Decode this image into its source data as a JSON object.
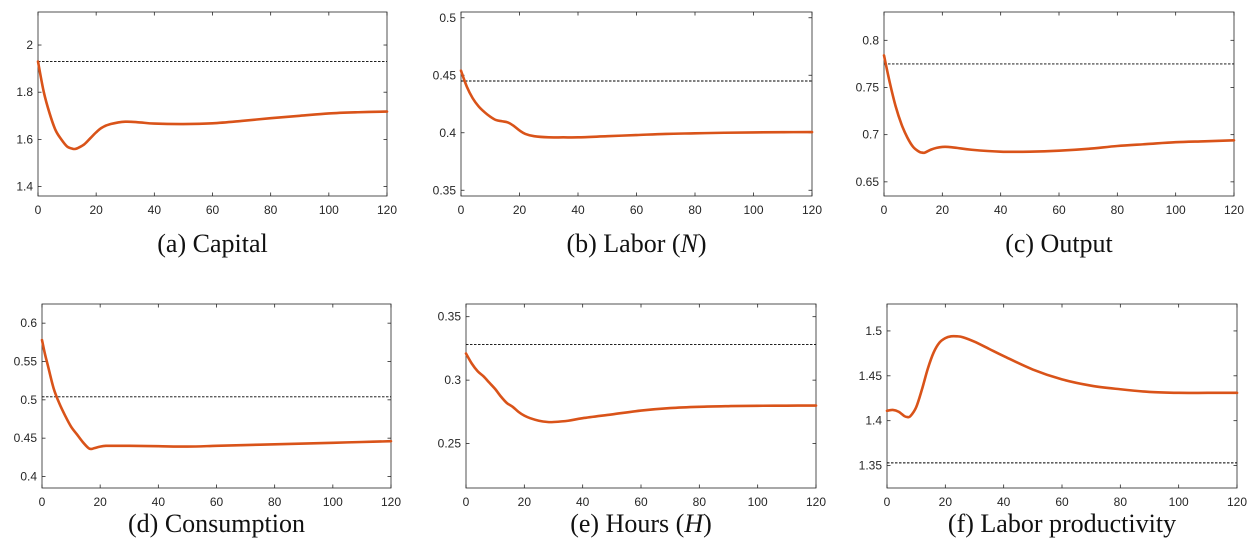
{
  "colors": {
    "series": "#d95319",
    "reference": "#000000",
    "axis": "#262626"
  },
  "chart_data": [
    {
      "type": "line",
      "caption": "(a) Capital",
      "xlim": [
        0,
        120
      ],
      "ylim": [
        1.36,
        2.14
      ],
      "xticks": [
        0,
        20,
        40,
        60,
        80,
        100,
        120
      ],
      "yticks": [
        1.4,
        1.6,
        1.8,
        2.0
      ],
      "ytick_labels": [
        "1.4",
        "1.6",
        "1.8",
        "2"
      ],
      "reference": 1.93,
      "x": [
        0,
        2,
        4,
        6,
        8,
        10,
        12,
        13,
        14,
        16,
        18,
        20,
        22,
        25,
        30,
        35,
        40,
        50,
        60,
        70,
        80,
        90,
        100,
        110,
        120
      ],
      "y": [
        1.93,
        1.8,
        1.71,
        1.64,
        1.6,
        1.57,
        1.56,
        1.56,
        1.565,
        1.58,
        1.605,
        1.63,
        1.65,
        1.665,
        1.675,
        1.672,
        1.667,
        1.665,
        1.668,
        1.678,
        1.69,
        1.7,
        1.71,
        1.715,
        1.718
      ]
    },
    {
      "type": "line",
      "caption": "(b) Labor (N)",
      "xlim": [
        0,
        120
      ],
      "ylim": [
        0.345,
        0.505
      ],
      "xticks": [
        0,
        20,
        40,
        60,
        80,
        100,
        120
      ],
      "yticks": [
        0.35,
        0.4,
        0.45,
        0.5
      ],
      "ytick_labels": [
        "0.35",
        "0.4",
        "0.45",
        "0.5"
      ],
      "reference": 0.445,
      "x": [
        0,
        2,
        4,
        6,
        8,
        10,
        12,
        14,
        16,
        18,
        20,
        22,
        25,
        30,
        35,
        40,
        50,
        60,
        70,
        80,
        90,
        100,
        110,
        120
      ],
      "y": [
        0.454,
        0.44,
        0.43,
        0.423,
        0.418,
        0.414,
        0.411,
        0.41,
        0.409,
        0.406,
        0.402,
        0.399,
        0.397,
        0.396,
        0.396,
        0.396,
        0.397,
        0.398,
        0.399,
        0.3995,
        0.4,
        0.4003,
        0.4005,
        0.4006
      ]
    },
    {
      "type": "line",
      "caption": "(c) Output",
      "xlim": [
        0,
        120
      ],
      "ylim": [
        0.635,
        0.83
      ],
      "xticks": [
        0,
        20,
        40,
        60,
        80,
        100,
        120
      ],
      "yticks": [
        0.65,
        0.7,
        0.75,
        0.8
      ],
      "ytick_labels": [
        "0.65",
        "0.7",
        "0.75",
        "0.8"
      ],
      "reference": 0.775,
      "x": [
        0,
        2,
        4,
        6,
        8,
        10,
        12,
        13,
        14,
        16,
        18,
        20,
        22,
        25,
        30,
        40,
        50,
        60,
        70,
        80,
        90,
        100,
        110,
        120
      ],
      "y": [
        0.784,
        0.755,
        0.73,
        0.711,
        0.697,
        0.687,
        0.682,
        0.681,
        0.681,
        0.684,
        0.686,
        0.687,
        0.687,
        0.686,
        0.684,
        0.682,
        0.682,
        0.683,
        0.685,
        0.688,
        0.69,
        0.692,
        0.693,
        0.694
      ]
    },
    {
      "type": "line",
      "caption": "(d) Consumption",
      "xlim": [
        0,
        120
      ],
      "ylim": [
        0.385,
        0.625
      ],
      "xticks": [
        0,
        20,
        40,
        60,
        80,
        100,
        120
      ],
      "yticks": [
        0.4,
        0.45,
        0.5,
        0.55,
        0.6
      ],
      "ytick_labels": [
        "0.4",
        "0.45",
        "0.5",
        "0.55",
        "0.6"
      ],
      "reference": 0.504,
      "x": [
        0,
        1,
        2,
        4,
        6,
        8,
        10,
        12,
        14,
        16,
        17,
        18,
        20,
        22,
        25,
        30,
        40,
        50,
        60,
        70,
        80,
        90,
        100,
        110,
        120
      ],
      "y": [
        0.578,
        0.56,
        0.545,
        0.515,
        0.495,
        0.479,
        0.465,
        0.455,
        0.445,
        0.437,
        0.436,
        0.437,
        0.439,
        0.44,
        0.44,
        0.44,
        0.4395,
        0.439,
        0.44,
        0.441,
        0.442,
        0.443,
        0.444,
        0.445,
        0.446
      ]
    },
    {
      "type": "line",
      "caption": "(e) Hours (H)",
      "xlim": [
        0,
        120
      ],
      "ylim": [
        0.215,
        0.36
      ],
      "xticks": [
        0,
        20,
        40,
        60,
        80,
        100,
        120
      ],
      "yticks": [
        0.25,
        0.3,
        0.35
      ],
      "ytick_labels": [
        "0.25",
        "0.3",
        "0.35"
      ],
      "reference": 0.328,
      "x": [
        0,
        2,
        4,
        6,
        8,
        10,
        12,
        14,
        16,
        18,
        20,
        22,
        25,
        28,
        30,
        35,
        40,
        50,
        60,
        70,
        80,
        90,
        100,
        110,
        120
      ],
      "y": [
        0.321,
        0.313,
        0.307,
        0.303,
        0.298,
        0.293,
        0.287,
        0.282,
        0.279,
        0.275,
        0.272,
        0.27,
        0.268,
        0.267,
        0.267,
        0.268,
        0.27,
        0.273,
        0.276,
        0.278,
        0.279,
        0.2795,
        0.2798,
        0.2799,
        0.28
      ]
    },
    {
      "type": "line",
      "caption": "(f) Labor productivity",
      "xlim": [
        0,
        120
      ],
      "ylim": [
        1.325,
        1.53
      ],
      "xticks": [
        0,
        20,
        40,
        60,
        80,
        100,
        120
      ],
      "yticks": [
        1.35,
        1.4,
        1.45,
        1.5
      ],
      "ytick_labels": [
        "1.35",
        "1.4",
        "1.45",
        "1.5"
      ],
      "reference": 1.353,
      "x": [
        0,
        2,
        4,
        6,
        7,
        8,
        10,
        12,
        14,
        16,
        18,
        20,
        22,
        24,
        26,
        30,
        35,
        40,
        50,
        60,
        70,
        80,
        90,
        100,
        110,
        120
      ],
      "y": [
        1.411,
        1.412,
        1.41,
        1.405,
        1.404,
        1.405,
        1.415,
        1.435,
        1.458,
        1.476,
        1.487,
        1.492,
        1.494,
        1.494,
        1.493,
        1.488,
        1.48,
        1.472,
        1.457,
        1.446,
        1.439,
        1.435,
        1.432,
        1.431,
        1.431,
        1.431
      ]
    }
  ]
}
